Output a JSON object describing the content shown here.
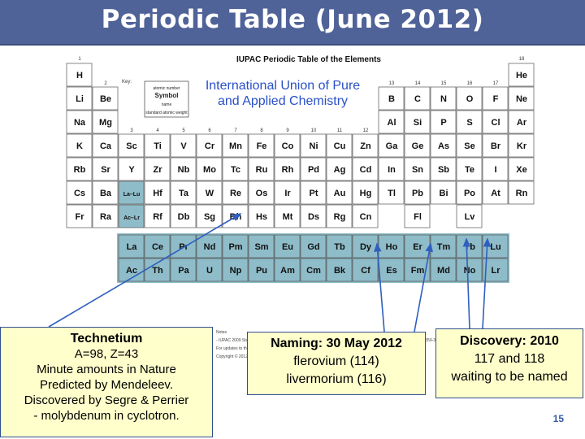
{
  "slide": {
    "title": "Periodic Table (June 2012)",
    "page_number": "15"
  },
  "table": {
    "heading": "IUPAC Periodic Table of the Elements",
    "caption": [
      "International Union of Pure",
      "and Applied Chemistry"
    ],
    "key": {
      "label": "Key:",
      "lines": [
        "atomic number",
        "Symbol",
        "name",
        "standard atomic weight"
      ]
    },
    "groups_left": [
      "1",
      "2"
    ],
    "groups_right": [
      "13",
      "14",
      "15",
      "16",
      "17",
      "18"
    ],
    "groups_mid": [
      "3",
      "4",
      "5",
      "6",
      "7",
      "8",
      "9",
      "10",
      "11",
      "12"
    ],
    "period_rows": [
      [
        "H",
        "",
        "",
        "",
        "",
        "",
        "",
        "",
        "",
        "",
        "",
        "",
        "",
        "",
        "",
        "",
        "",
        "He"
      ],
      [
        "Li",
        "Be",
        "",
        "",
        "",
        "",
        "",
        "",
        "",
        "",
        "",
        "",
        "B",
        "C",
        "N",
        "O",
        "F",
        "Ne"
      ],
      [
        "Na",
        "Mg",
        "",
        "",
        "",
        "",
        "",
        "",
        "",
        "",
        "",
        "",
        "Al",
        "Si",
        "P",
        "S",
        "Cl",
        "Ar"
      ],
      [
        "K",
        "Ca",
        "Sc",
        "Ti",
        "V",
        "Cr",
        "Mn",
        "Fe",
        "Co",
        "Ni",
        "Cu",
        "Zn",
        "Ga",
        "Ge",
        "As",
        "Se",
        "Br",
        "Kr"
      ],
      [
        "Rb",
        "Sr",
        "Y",
        "Zr",
        "Nb",
        "Mo",
        "Tc",
        "Ru",
        "Rh",
        "Pd",
        "Ag",
        "Cd",
        "In",
        "Sn",
        "Sb",
        "Te",
        "I",
        "Xe"
      ],
      [
        "Cs",
        "Ba",
        "La–Lu",
        "Hf",
        "Ta",
        "W",
        "Re",
        "Os",
        "Ir",
        "Pt",
        "Au",
        "Hg",
        "Tl",
        "Pb",
        "Bi",
        "Po",
        "At",
        "Rn"
      ],
      [
        "Fr",
        "Ra",
        "Ac–Lr",
        "Rf",
        "Db",
        "Sg",
        "Bh",
        "Hs",
        "Mt",
        "Ds",
        "Rg",
        "Cn",
        "",
        "Fl",
        "",
        "Lv",
        "",
        ""
      ]
    ],
    "lanthanides": [
      "La",
      "Ce",
      "Pr",
      "Nd",
      "Pm",
      "Sm",
      "Eu",
      "Gd",
      "Tb",
      "Dy",
      "Ho",
      "Er",
      "Tm",
      "Yb",
      "Lu"
    ],
    "actinides": [
      "Ac",
      "Th",
      "Pa",
      "U",
      "Np",
      "Pu",
      "Am",
      "Cm",
      "Bk",
      "Cf",
      "Es",
      "Fm",
      "Md",
      "No",
      "Lr"
    ],
    "footnote": [
      "Notes",
      "- IUPAC 2009 Standard atomic weights abridged to four significant digits (Table 4 published in Pure Appl. Chem. 83, 359-396 (2011);",
      "For updates to this table, see iupac.org/reports/periodic_table/. This version is dated 1 June 2012.",
      "Copyright © 2012 IUPAC, the International Union of Pure and Applied Chemistry."
    ]
  },
  "callouts": {
    "technetium": {
      "title": "Technetium",
      "lines": [
        "A=98, Z=43",
        "Minute amounts in Nature",
        "Predicted by Mendeleev.",
        "Discovered by Segre & Perrier",
        "- molybdenum in cyclotron."
      ]
    },
    "naming": {
      "title": "Naming: 30 May 2012",
      "lines": [
        "flerovium (114)",
        "livermorium (116)"
      ]
    },
    "discovery": {
      "title": "Discovery: 2010",
      "lines": [
        "117 and 118",
        "waiting to be named"
      ]
    }
  },
  "colors": {
    "header": "#4f6398",
    "callout_fill": "#ffffcc",
    "arrow": "#2f5fbf",
    "f_block": "#8fbcc9",
    "cell_border": "#555555"
  }
}
